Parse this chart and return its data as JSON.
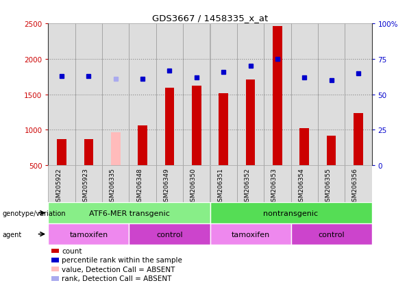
{
  "title": "GDS3667 / 1458335_x_at",
  "samples": [
    "GSM205922",
    "GSM205923",
    "GSM206335",
    "GSM206348",
    "GSM206349",
    "GSM206350",
    "GSM206351",
    "GSM206352",
    "GSM206353",
    "GSM206354",
    "GSM206355",
    "GSM206356"
  ],
  "count_values": [
    870,
    870,
    970,
    1060,
    1590,
    1620,
    1520,
    1710,
    2460,
    1020,
    920,
    1240
  ],
  "rank_values": [
    63,
    63,
    61,
    61,
    67,
    62,
    66,
    70,
    75,
    62,
    60,
    65
  ],
  "absent_mask": [
    false,
    false,
    true,
    false,
    false,
    false,
    false,
    false,
    false,
    false,
    false,
    false
  ],
  "ylim_left": [
    500,
    2500
  ],
  "ylim_right": [
    0,
    100
  ],
  "yticks_left": [
    500,
    1000,
    1500,
    2000,
    2500
  ],
  "yticks_right": [
    0,
    25,
    50,
    75,
    100
  ],
  "ytick_labels_right": [
    "0",
    "25",
    "50",
    "75",
    "100%"
  ],
  "bar_color": "#cc0000",
  "bar_absent_color": "#ffbbbb",
  "dot_color": "#0000cc",
  "dot_absent_color": "#aaaaee",
  "grid_color": "#888888",
  "bg_color": "#ffffff",
  "plot_bg_color": "#ffffff",
  "col_bg_color": "#dddddd",
  "left_tick_color": "#cc0000",
  "right_tick_color": "#0000cc",
  "genotype_groups": [
    {
      "label": "ATF6-MER transgenic",
      "start": 0,
      "end": 6,
      "color": "#88ee88"
    },
    {
      "label": "nontransgenic",
      "start": 6,
      "end": 12,
      "color": "#55dd55"
    }
  ],
  "agent_groups": [
    {
      "label": "tamoxifen",
      "start": 0,
      "end": 3,
      "color": "#ee88ee"
    },
    {
      "label": "control",
      "start": 3,
      "end": 6,
      "color": "#cc44cc"
    },
    {
      "label": "tamoxifen",
      "start": 6,
      "end": 9,
      "color": "#ee88ee"
    },
    {
      "label": "control",
      "start": 9,
      "end": 12,
      "color": "#cc44cc"
    }
  ],
  "legend_items": [
    {
      "label": "count",
      "color": "#cc0000"
    },
    {
      "label": "percentile rank within the sample",
      "color": "#0000cc"
    },
    {
      "label": "value, Detection Call = ABSENT",
      "color": "#ffbbbb"
    },
    {
      "label": "rank, Detection Call = ABSENT",
      "color": "#aaaaee"
    }
  ],
  "bar_width": 0.35,
  "dot_size": 5
}
